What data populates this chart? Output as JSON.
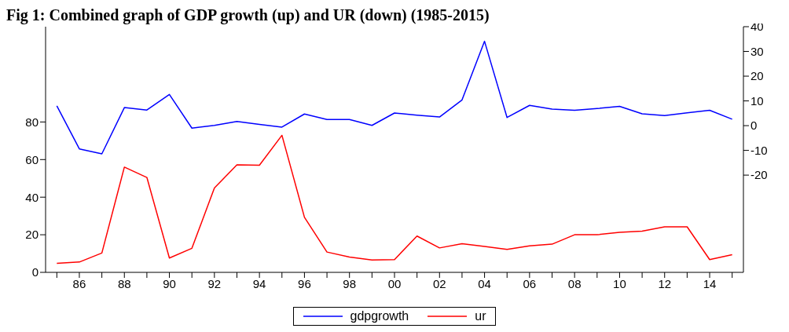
{
  "chart_data": {
    "type": "line",
    "title": "Fig 1: Combined graph of GDP growth (up) and UR (down) (1985-2015)",
    "x": [
      1985,
      1986,
      1987,
      1988,
      1989,
      1990,
      1991,
      1992,
      1993,
      1994,
      1995,
      1996,
      1997,
      1998,
      1999,
      2000,
      2001,
      2002,
      2003,
      2004,
      2005,
      2006,
      2007,
      2008,
      2009,
      2010,
      2011,
      2012,
      2013,
      2014,
      2015
    ],
    "series": [
      {
        "name": "gdpgrowth",
        "color": "#0000ff",
        "axis": "y2",
        "values": [
          8.0,
          -9.4,
          -11.4,
          7.3,
          6.3,
          12.6,
          -1.0,
          0.1,
          1.7,
          0.5,
          -0.6,
          4.7,
          2.5,
          2.5,
          0.1,
          5.1,
          4.2,
          3.5,
          10.4,
          34.1,
          3.3,
          8.2,
          6.7,
          6.2,
          6.9,
          7.8,
          4.8,
          4.1,
          5.2,
          6.2,
          2.6
        ]
      },
      {
        "name": "ur",
        "color": "#ff0000",
        "values": [
          4.8,
          5.5,
          10.3,
          56,
          50.5,
          7.6,
          12.8,
          44.9,
          57.2,
          57,
          72.9,
          29.3,
          10.8,
          8.1,
          6.6,
          6.8,
          19.3,
          13.0,
          15.2,
          13.8,
          12.2,
          14.1,
          15.0,
          20.0,
          20.0,
          21.3,
          21.9,
          24.2,
          24.2,
          6.8,
          9.4
        ]
      }
    ],
    "xlim": [
      1984.5,
      2015.5
    ],
    "xticks": [
      {
        "value": 1985,
        "label": null
      },
      {
        "value": 1986,
        "label": "86"
      },
      {
        "value": 1987,
        "label": null
      },
      {
        "value": 1988,
        "label": "88"
      },
      {
        "value": 1989,
        "label": null
      },
      {
        "value": 1990,
        "label": "90"
      },
      {
        "value": 1991,
        "label": null
      },
      {
        "value": 1992,
        "label": "92"
      },
      {
        "value": 1993,
        "label": null
      },
      {
        "value": 1994,
        "label": "94"
      },
      {
        "value": 1995,
        "label": null
      },
      {
        "value": 1996,
        "label": "96"
      },
      {
        "value": 1997,
        "label": null
      },
      {
        "value": 1998,
        "label": "98"
      },
      {
        "value": 1999,
        "label": null
      },
      {
        "value": 2000,
        "label": "00"
      },
      {
        "value": 2001,
        "label": null
      },
      {
        "value": 2002,
        "label": "02"
      },
      {
        "value": 2003,
        "label": null
      },
      {
        "value": 2004,
        "label": "04"
      },
      {
        "value": 2005,
        "label": null
      },
      {
        "value": 2006,
        "label": "06"
      },
      {
        "value": 2007,
        "label": null
      },
      {
        "value": 2008,
        "label": "08"
      },
      {
        "value": 2009,
        "label": null
      },
      {
        "value": 2010,
        "label": "10"
      },
      {
        "value": 2011,
        "label": null
      },
      {
        "value": 2012,
        "label": "12"
      },
      {
        "value": 2013,
        "label": null
      },
      {
        "value": 2014,
        "label": "14"
      },
      {
        "value": 2015,
        "label": null
      }
    ],
    "ylim": [
      0,
      130.7
    ],
    "yticks": [
      0,
      20,
      40,
      60,
      80
    ],
    "y2lim": [
      -59.3,
      40
    ],
    "y2ticks": [
      -20,
      -10,
      0,
      10,
      20,
      30,
      40
    ],
    "legend": "bottom",
    "marker": "none",
    "line_style": "solid"
  }
}
